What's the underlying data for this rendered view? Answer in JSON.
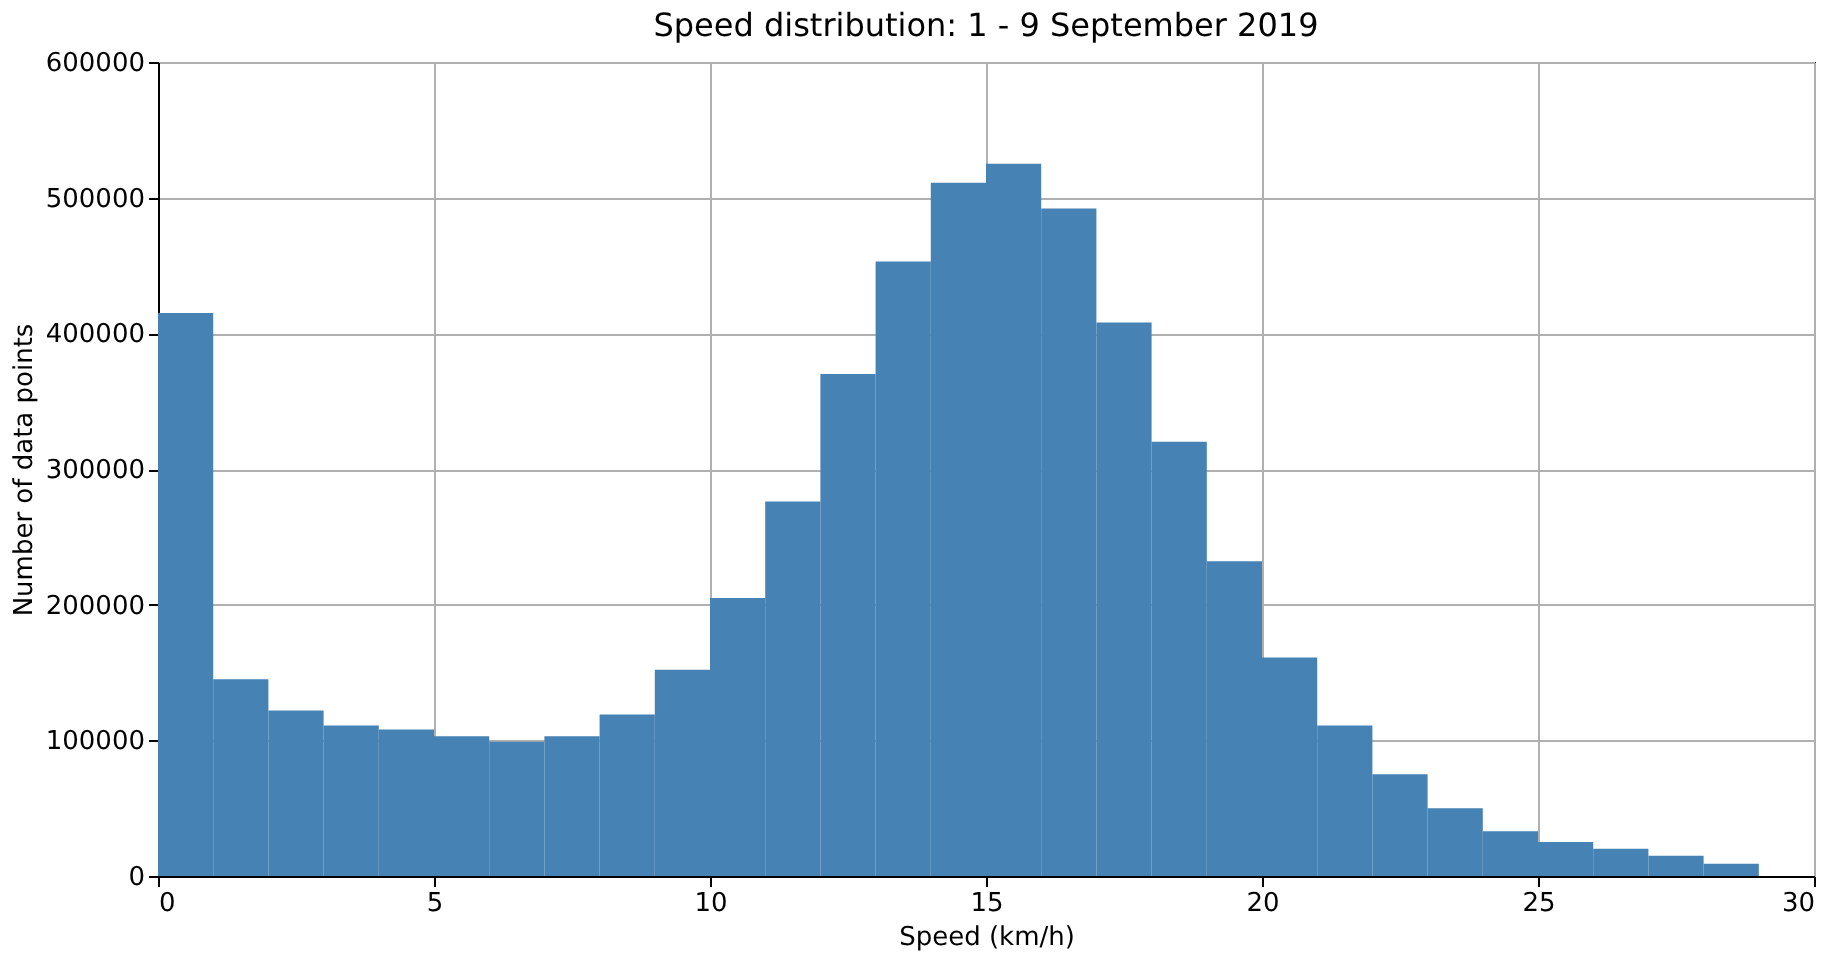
{
  "chart_data": {
    "type": "histogram",
    "title": "Speed distribution: 1 - 9 September 2019",
    "xlabel": "Speed (km/h)",
    "ylabel": "Number of data points",
    "bins": [
      0,
      1,
      2,
      3,
      4,
      5,
      6,
      7,
      8,
      9,
      10,
      11,
      12,
      13,
      14,
      15,
      16,
      17,
      18,
      19,
      20,
      21,
      22,
      23,
      24,
      25,
      26,
      27,
      28,
      29
    ],
    "values": [
      415000,
      145000,
      122000,
      111000,
      108000,
      103000,
      99000,
      103000,
      119000,
      152000,
      205000,
      276000,
      370000,
      453000,
      511000,
      525000,
      492000,
      408000,
      320000,
      232000,
      161000,
      111000,
      75000,
      50000,
      33000,
      25000,
      20000,
      15000,
      9000
    ],
    "color": "#4682b4",
    "xlim": [
      0,
      30
    ],
    "xticks": [
      0,
      5,
      10,
      15,
      20,
      25,
      30
    ],
    "ylim": [
      0,
      600000
    ],
    "yticks": [
      0,
      100000,
      200000,
      300000,
      400000,
      500000,
      600000
    ],
    "grid": true
  }
}
